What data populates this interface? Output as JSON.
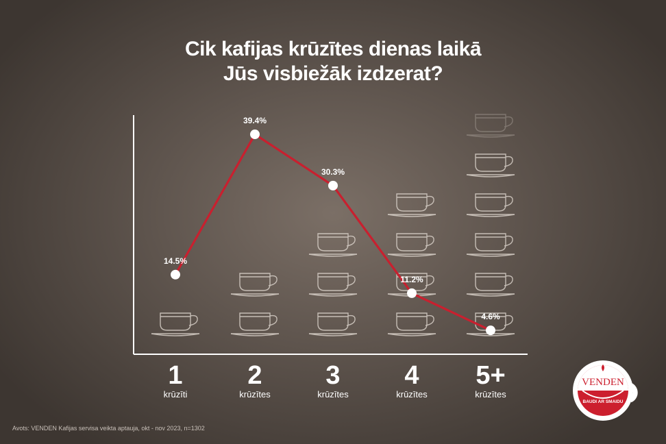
{
  "title_line1": "Cik kafijas krūzītes dienas laikā",
  "title_line2": "Jūs visbiežāk izdzerat?",
  "source": "Avots: VENDEN Kafijas servisa veikta aptauja, okt - nov 2023, n=1302",
  "brand": {
    "name": "VENDEN",
    "slogan": "BAUDI AR SMAIDU"
  },
  "colors": {
    "line": "#c8202f",
    "point": "#ffffff",
    "cup_stroke": "#d8d0c8",
    "brand_red": "#cc1f2e"
  },
  "chart_data": {
    "type": "line",
    "categories": [
      {
        "number": "1",
        "unit": "krūzīti"
      },
      {
        "number": "2",
        "unit": "krūzītes"
      },
      {
        "number": "3",
        "unit": "krūzītes"
      },
      {
        "number": "4",
        "unit": "krūzītes"
      },
      {
        "number": "5+",
        "unit": "krūzītes"
      }
    ],
    "values": [
      14.5,
      39.4,
      30.3,
      11.2,
      4.6
    ],
    "value_labels": [
      "14.5%",
      "39.4%",
      "30.3%",
      "11.2%",
      "4.6%"
    ],
    "cups_per_category": [
      1,
      2,
      3,
      4,
      5.5
    ],
    "legend": "none",
    "grid": false
  }
}
